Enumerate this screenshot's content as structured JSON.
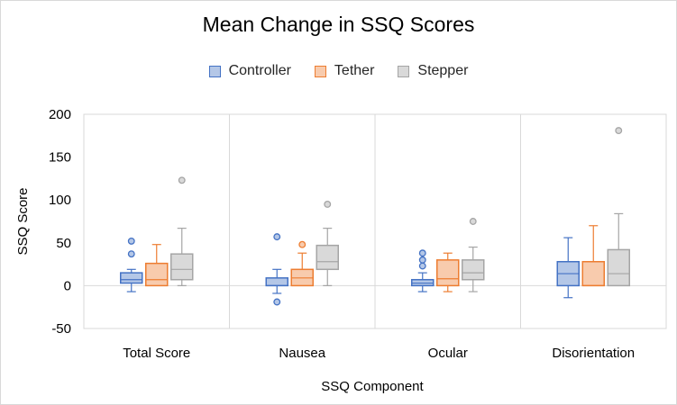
{
  "chart_data": {
    "type": "boxplot",
    "title": "Mean Change in SSQ Scores",
    "xlabel": "SSQ Component",
    "ylabel": "SSQ Score",
    "ylim": [
      -50,
      200
    ],
    "yticks": [
      -50,
      0,
      50,
      100,
      150,
      200
    ],
    "grid": "vertical separators between categories",
    "legend_position": "top",
    "categories": [
      "Total Score",
      "Nausea",
      "Ocular",
      "Disorientation"
    ],
    "series": [
      {
        "name": "Controller",
        "fill": "#b4c7e7",
        "stroke": "#4472c4",
        "boxes": [
          {
            "min": -7,
            "q1": 3,
            "median": 7,
            "q3": 15,
            "max": 19,
            "outliers": [
              37,
              52
            ]
          },
          {
            "min": -9,
            "q1": 0,
            "median": 0,
            "q3": 9,
            "max": 19,
            "outliers": [
              57,
              -19
            ]
          },
          {
            "min": -7,
            "q1": 0,
            "median": 3,
            "q3": 7,
            "max": 15,
            "outliers": [
              23,
              30,
              38
            ]
          },
          {
            "min": -14,
            "q1": 0,
            "median": 14,
            "q3": 28,
            "max": 56,
            "outliers": []
          }
        ]
      },
      {
        "name": "Tether",
        "fill": "#f8cbad",
        "stroke": "#ed7d31",
        "boxes": [
          {
            "min": 0,
            "q1": 0,
            "median": 7,
            "q3": 26,
            "max": 48,
            "outliers": []
          },
          {
            "min": 0,
            "q1": 0,
            "median": 9,
            "q3": 19,
            "max": 38,
            "outliers": [
              48
            ]
          },
          {
            "min": -7,
            "q1": 0,
            "median": 8,
            "q3": 30,
            "max": 38,
            "outliers": []
          },
          {
            "min": 0,
            "q1": 0,
            "median": 0,
            "q3": 28,
            "max": 70,
            "outliers": []
          }
        ]
      },
      {
        "name": "Stepper",
        "fill": "#d9d9d9",
        "stroke": "#a5a5a5",
        "boxes": [
          {
            "min": 0,
            "q1": 7,
            "median": 19,
            "q3": 37,
            "max": 67,
            "outliers": [
              123
            ]
          },
          {
            "min": 0,
            "q1": 19,
            "median": 28,
            "q3": 47,
            "max": 67,
            "outliers": [
              95
            ]
          },
          {
            "min": -7,
            "q1": 7,
            "median": 15,
            "q3": 30,
            "max": 45,
            "outliers": [
              75
            ]
          },
          {
            "min": 0,
            "q1": 0,
            "median": 14,
            "q3": 42,
            "max": 84,
            "outliers": [
              181
            ]
          }
        ]
      }
    ]
  }
}
